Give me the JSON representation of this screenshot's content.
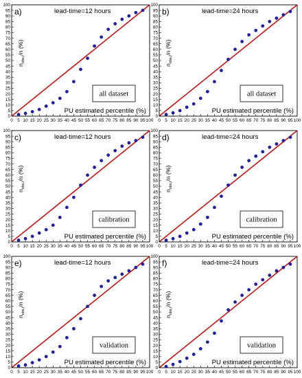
{
  "figure": {
    "identity_line_color": "#cc1111",
    "marker_color": "#1f1f9f"
  },
  "chart_data": [
    {
      "type": "scatter",
      "panel_letter": "a)",
      "leadtime": "lead-time=12 hours",
      "box_label": "all dataset",
      "xlabel": "PU estimated percentile (%)",
      "ylabel_main": "n",
      "ylabel_sub": "obs,i",
      "ylabel_tail": "/n (%)",
      "xlim": [
        0,
        100
      ],
      "ylim": [
        0,
        100
      ],
      "xticks": [
        0,
        5,
        10,
        15,
        20,
        25,
        30,
        35,
        40,
        45,
        50,
        55,
        60,
        65,
        70,
        75,
        80,
        85,
        90,
        95,
        100
      ],
      "yticks": [
        0,
        5,
        10,
        15,
        20,
        25,
        30,
        35,
        40,
        45,
        50,
        55,
        60,
        65,
        70,
        75,
        80,
        85,
        90,
        95,
        100
      ],
      "series": [
        {
          "x": [
            5,
            10,
            15,
            20,
            25,
            30,
            35,
            40,
            45,
            50,
            55,
            60,
            65,
            70,
            75,
            80,
            85,
            90,
            95
          ],
          "y": [
            1.5,
            2.5,
            4,
            6,
            9,
            12,
            16,
            22,
            31,
            42,
            52,
            63,
            71,
            78,
            83,
            87,
            90,
            93,
            95
          ]
        }
      ]
    },
    {
      "type": "scatter",
      "panel_letter": "b)",
      "leadtime": "lead-time=24 hours",
      "box_label": "all dataset",
      "xlabel": "PU estimated percentile (%)",
      "ylabel_main": "n",
      "ylabel_sub": "obs,i",
      "ylabel_tail": "/n (%)",
      "xlim": [
        0,
        100
      ],
      "ylim": [
        0,
        100
      ],
      "xticks": [
        0,
        5,
        10,
        15,
        20,
        25,
        30,
        35,
        40,
        45,
        50,
        55,
        60,
        65,
        70,
        75,
        80,
        85,
        90,
        95,
        100
      ],
      "yticks": [
        0,
        5,
        10,
        15,
        20,
        25,
        30,
        35,
        40,
        45,
        50,
        55,
        60,
        65,
        70,
        75,
        80,
        85,
        90,
        95,
        100
      ],
      "series": [
        {
          "x": [
            5,
            10,
            15,
            20,
            25,
            30,
            35,
            40,
            45,
            50,
            55,
            60,
            65,
            70,
            75,
            80,
            85,
            90,
            95
          ],
          "y": [
            1.5,
            3,
            5,
            8,
            11,
            16,
            22,
            31,
            41,
            51,
            60,
            67,
            73,
            77,
            81,
            85,
            88,
            91,
            94
          ]
        }
      ]
    },
    {
      "type": "scatter",
      "panel_letter": "c)",
      "leadtime": "lead-time=12 hours",
      "box_label": "calibration",
      "xlabel": "PU estimated percentile (%)",
      "ylabel_main": "n",
      "ylabel_sub": "obs,i",
      "ylabel_tail": "/n (%)",
      "xlim": [
        0,
        100
      ],
      "ylim": [
        0,
        100
      ],
      "xticks": [
        0,
        5,
        10,
        15,
        20,
        25,
        30,
        35,
        40,
        45,
        50,
        55,
        60,
        65,
        70,
        75,
        80,
        85,
        90,
        95,
        100
      ],
      "yticks": [
        0,
        5,
        10,
        15,
        20,
        25,
        30,
        35,
        40,
        45,
        50,
        55,
        60,
        65,
        70,
        75,
        80,
        85,
        90,
        95,
        100
      ],
      "series": [
        {
          "x": [
            5,
            10,
            15,
            20,
            25,
            30,
            35,
            40,
            45,
            50,
            55,
            60,
            65,
            70,
            75,
            80,
            85,
            90,
            95
          ],
          "y": [
            1.5,
            3,
            5,
            8,
            11,
            15,
            22,
            31,
            40,
            51,
            60,
            67,
            73,
            78,
            82,
            86,
            89,
            91,
            94
          ]
        }
      ]
    },
    {
      "type": "scatter",
      "panel_letter": "d)",
      "leadtime": "lead-time=24 hours",
      "box_label": "calibration",
      "xlabel": "PU estimated percentile (%)",
      "ylabel_main": "n",
      "ylabel_sub": "obs,i",
      "ylabel_tail": "/n (%)",
      "xlim": [
        0,
        100
      ],
      "ylim": [
        0,
        100
      ],
      "xticks": [
        0,
        5,
        10,
        15,
        20,
        25,
        30,
        35,
        40,
        45,
        50,
        55,
        60,
        65,
        70,
        75,
        80,
        85,
        90,
        95,
        100
      ],
      "yticks": [
        0,
        5,
        10,
        15,
        20,
        25,
        30,
        35,
        40,
        45,
        50,
        55,
        60,
        65,
        70,
        75,
        80,
        85,
        90,
        95,
        100
      ],
      "series": [
        {
          "x": [
            5,
            10,
            15,
            20,
            25,
            30,
            35,
            40,
            45,
            50,
            55,
            60,
            65,
            70,
            75,
            80,
            85,
            90,
            95
          ],
          "y": [
            1.5,
            3,
            5,
            8,
            11,
            16,
            22,
            31,
            41,
            51,
            60,
            67,
            73,
            77,
            81,
            85,
            88,
            91,
            94
          ]
        }
      ]
    },
    {
      "type": "scatter",
      "panel_letter": "e)",
      "leadtime": "lead-time=12 hours",
      "box_label": "validation",
      "xlabel": "PU estimated percentile (%)",
      "ylabel_main": "n",
      "ylabel_sub": "obs,i",
      "ylabel_tail": "/n (%)",
      "xlim": [
        0,
        100
      ],
      "ylim": [
        0,
        100
      ],
      "xticks": [
        0,
        5,
        10,
        15,
        20,
        25,
        30,
        35,
        40,
        45,
        50,
        55,
        60,
        65,
        70,
        75,
        80,
        85,
        90,
        95,
        100
      ],
      "yticks": [
        0,
        5,
        10,
        15,
        20,
        25,
        30,
        35,
        40,
        45,
        50,
        55,
        60,
        65,
        70,
        75,
        80,
        85,
        90,
        95,
        100
      ],
      "series": [
        {
          "x": [
            5,
            10,
            15,
            20,
            25,
            30,
            35,
            40,
            45,
            50,
            55,
            60,
            65,
            70,
            75,
            80,
            85,
            90,
            95
          ],
          "y": [
            1.5,
            2.5,
            4.5,
            7,
            10,
            14,
            19,
            27,
            35,
            44,
            55,
            65,
            73,
            78,
            81,
            84,
            87,
            90,
            93
          ]
        }
      ]
    },
    {
      "type": "scatter",
      "panel_letter": "f)",
      "leadtime": "lead-time=24 hours",
      "box_label": "validation",
      "xlabel": "PU estimated percentile (%)",
      "ylabel_main": "n",
      "ylabel_sub": "obs,i",
      "ylabel_tail": "/n (%)",
      "xlim": [
        0,
        100
      ],
      "ylim": [
        0,
        100
      ],
      "xticks": [
        0,
        5,
        10,
        15,
        20,
        25,
        30,
        35,
        40,
        45,
        50,
        55,
        60,
        65,
        70,
        75,
        80,
        85,
        90,
        95,
        100
      ],
      "yticks": [
        0,
        5,
        10,
        15,
        20,
        25,
        30,
        35,
        40,
        45,
        50,
        55,
        60,
        65,
        70,
        75,
        80,
        85,
        90,
        95,
        100
      ],
      "series": [
        {
          "x": [
            5,
            10,
            15,
            20,
            25,
            30,
            35,
            40,
            45,
            50,
            55,
            60,
            65,
            70,
            75,
            80,
            85,
            90,
            95
          ],
          "y": [
            1,
            3,
            5.5,
            8.5,
            12,
            17,
            23,
            31,
            42,
            52,
            59,
            65,
            70,
            75,
            79,
            83,
            87,
            90,
            93
          ]
        }
      ]
    }
  ]
}
